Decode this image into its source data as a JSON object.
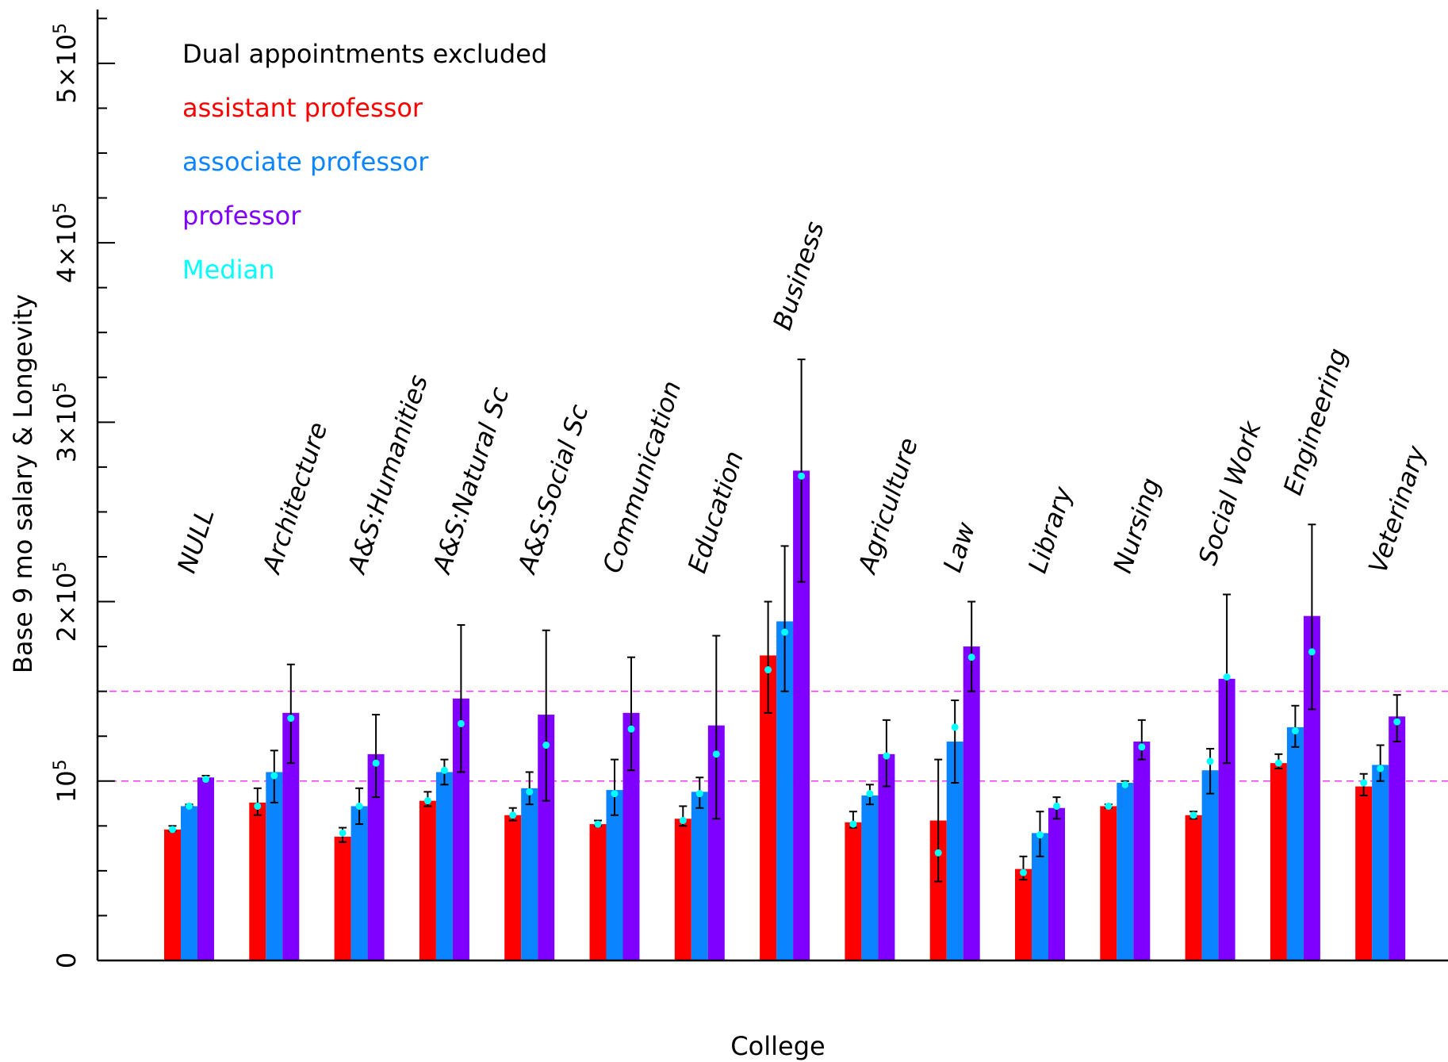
{
  "chart_data": {
    "type": "bar",
    "title": "",
    "xlabel": "College",
    "ylabel": "Base 9 mo salary & Longevity",
    "ylim": [
      0,
      530000
    ],
    "yticks": [
      {
        "value": 0,
        "label": "0",
        "exp": ""
      },
      {
        "value": 100000,
        "label": "10",
        "exp": "5"
      },
      {
        "value": 200000,
        "label": "2×10",
        "exp": "5"
      },
      {
        "value": 300000,
        "label": "3×10",
        "exp": "5"
      },
      {
        "value": 400000,
        "label": "4×10",
        "exp": "5"
      },
      {
        "value": 500000,
        "label": "5×10",
        "exp": "5"
      }
    ],
    "reference_lines": [
      100000,
      150000
    ],
    "legend": {
      "placement": "top-left",
      "note": "Dual appointments excluded",
      "entries": [
        {
          "label": "assistant professor",
          "color": "#ff0000"
        },
        {
          "label": "associate professor",
          "color": "#0a84ff"
        },
        {
          "label": "professor",
          "color": "#8000ff"
        },
        {
          "label": "Median",
          "color": "#00ffff"
        }
      ]
    },
    "categories": [
      "NULL",
      "Architecture",
      "A&S:Humanities",
      "A&S:Natural Sc",
      "A&S:Social Sc",
      "Communication",
      "Education",
      "Business",
      "Agriculture",
      "Law",
      "Library",
      "Nursing",
      "Social Work",
      "Engineering",
      "Veterinary"
    ],
    "series": [
      {
        "name": "assistant professor",
        "color": "#ff0000",
        "values": [
          73000,
          88000,
          69000,
          89000,
          81000,
          76000,
          79000,
          170000,
          77000,
          78000,
          51000,
          86000,
          81000,
          110000,
          97000
        ],
        "err_low": [
          72000,
          81000,
          66000,
          86000,
          78000,
          75000,
          75000,
          138000,
          74000,
          44000,
          45000,
          85000,
          79000,
          107000,
          92000
        ],
        "err_high": [
          75000,
          96000,
          74000,
          94000,
          85000,
          78000,
          86000,
          200000,
          83000,
          112000,
          58000,
          87000,
          83000,
          115000,
          104000
        ],
        "median": [
          73000,
          86000,
          71000,
          89000,
          81000,
          76000,
          78000,
          162000,
          76000,
          60000,
          49000,
          86000,
          81000,
          110000,
          99000
        ]
      },
      {
        "name": "associate professor",
        "color": "#0a84ff",
        "values": [
          86000,
          105000,
          86000,
          105000,
          96000,
          95000,
          94000,
          189000,
          92000,
          122000,
          71000,
          99000,
          106000,
          130000,
          109000
        ],
        "err_low": [
          86000,
          88000,
          76000,
          98000,
          87000,
          81000,
          85000,
          150000,
          87000,
          99000,
          58000,
          98000,
          93000,
          119000,
          100000
        ],
        "err_high": [
          87000,
          117000,
          96000,
          112000,
          105000,
          112000,
          102000,
          231000,
          98000,
          145000,
          83000,
          100000,
          118000,
          142000,
          120000
        ],
        "median": [
          86000,
          103000,
          86000,
          106000,
          94000,
          93000,
          93000,
          183000,
          93000,
          130000,
          70000,
          98000,
          111000,
          128000,
          107000
        ]
      },
      {
        "name": "professor",
        "color": "#8000ff",
        "values": [
          102000,
          138000,
          115000,
          146000,
          137000,
          138000,
          131000,
          273000,
          115000,
          175000,
          85000,
          122000,
          157000,
          192000,
          136000
        ],
        "err_low": [
          101000,
          110000,
          91000,
          105000,
          89000,
          106000,
          79000,
          211000,
          97000,
          150000,
          79000,
          112000,
          110000,
          140000,
          122000
        ],
        "err_high": [
          103000,
          165000,
          137000,
          187000,
          184000,
          169000,
          181000,
          335000,
          134000,
          200000,
          91000,
          134000,
          204000,
          243000,
          148000
        ],
        "median": [
          101000,
          135000,
          110000,
          132000,
          120000,
          129000,
          115000,
          270000,
          114000,
          169000,
          86000,
          119000,
          158000,
          172000,
          133000
        ]
      }
    ]
  }
}
